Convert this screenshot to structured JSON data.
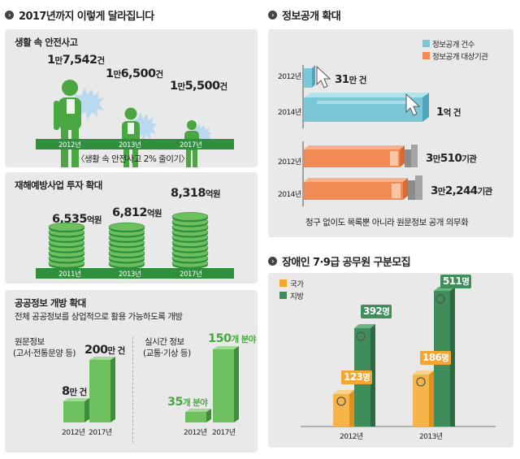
{
  "left": {
    "title": "2017년까지 이렇게 달라집니다",
    "safety": {
      "title": "생활 속 안전사고",
      "values": [
        {
          "big": "1",
          "unit": "만",
          "rest": "7,542",
          "suffix": "건"
        },
        {
          "big": "1",
          "unit": "만",
          "rest": "6,500",
          "suffix": "건"
        },
        {
          "big": "1",
          "unit": "만",
          "rest": "5,500",
          "suffix": "건"
        }
      ],
      "years": [
        "2012년",
        "2013년",
        "2017년"
      ],
      "caption": "〈생활 속 안전사고 2% 줄이기〉"
    },
    "prevention": {
      "title": "재해예방사업 투자 확대",
      "values": [
        {
          "num": "6,535",
          "unit": "억원"
        },
        {
          "num": "6,812",
          "unit": "억원"
        },
        {
          "num": "8,318",
          "unit": "억원"
        }
      ],
      "years": [
        "2011년",
        "2013년",
        "2017년"
      ]
    },
    "opendata": {
      "title": "공공정보 개방 확대",
      "subtitle": "전체 공공정보를 상업적으로 활용 가능하도록 개방",
      "original": {
        "label1": "원문정보",
        "label2": "(고서·전통문양 등)",
        "v2012": {
          "num": "8",
          "unit": "만 건"
        },
        "v2017": {
          "num": "200",
          "unit": "만 건"
        }
      },
      "realtime": {
        "label1": "실시간 정보",
        "label2": "(교통·기상 등)",
        "v2012": {
          "num": "35",
          "unit": "개 분야"
        },
        "v2017": {
          "num": "150",
          "unit": "개 분야"
        }
      },
      "years": [
        "2012년",
        "2017년"
      ]
    }
  },
  "right": {
    "disclosure": {
      "title": "정보공개 확대",
      "legend": [
        "정보공개 건수",
        "정보공개 대상기관"
      ],
      "caption": "청구 없이도 목록뿐 아니라 원문정보 공개 의무화",
      "rows": [
        {
          "year": "2012년",
          "big": "31",
          "text": "만 건"
        },
        {
          "year": "2014년",
          "big": "1",
          "text": "억 건"
        },
        {
          "year": "2012년",
          "big": "3",
          "text": "만",
          "big2": "510",
          "text2": "기관"
        },
        {
          "year": "2014년",
          "big": "3",
          "text": "만",
          "big2": "2,244",
          "text2": "기관"
        }
      ]
    },
    "disabled": {
      "title": "장애인 7·9급 공무원 구분모집",
      "legend": [
        "국가",
        "지방"
      ],
      "years": [
        "2012년",
        "2013년"
      ],
      "labels": [
        {
          "num": "123",
          "unit": "명"
        },
        {
          "num": "392",
          "unit": "명"
        },
        {
          "num": "186",
          "unit": "명"
        },
        {
          "num": "511",
          "unit": "명"
        }
      ]
    }
  },
  "chart_data": [
    {
      "type": "bar",
      "title": "생활 속 안전사고",
      "categories": [
        "2012년",
        "2013년",
        "2017년"
      ],
      "values": [
        17542,
        16500,
        15500
      ],
      "unit": "건"
    },
    {
      "type": "bar",
      "title": "재해예방사업 투자 확대",
      "categories": [
        "2011년",
        "2013년",
        "2017년"
      ],
      "values": [
        6535,
        6812,
        8318
      ],
      "unit": "억원"
    },
    {
      "type": "bar",
      "title": "공공정보 개방 확대",
      "categories": [
        "2012년",
        "2017년"
      ],
      "series": [
        {
          "name": "원문정보",
          "values": [
            80000,
            2000000
          ]
        },
        {
          "name": "실시간 정보",
          "values": [
            35,
            150
          ]
        }
      ]
    },
    {
      "type": "bar",
      "title": "정보공개 확대",
      "categories": [
        "2012년",
        "2014년"
      ],
      "series": [
        {
          "name": "정보공개 건수",
          "values": [
            310000,
            100000000
          ]
        },
        {
          "name": "정보공개 대상기관",
          "values": [
            30510,
            32244
          ]
        }
      ]
    },
    {
      "type": "bar",
      "title": "장애인 7·9급 공무원 구분모집",
      "categories": [
        "2012년",
        "2013년"
      ],
      "series": [
        {
          "name": "국가",
          "values": [
            123,
            186
          ]
        },
        {
          "name": "지방",
          "values": [
            392,
            511
          ]
        }
      ]
    }
  ]
}
